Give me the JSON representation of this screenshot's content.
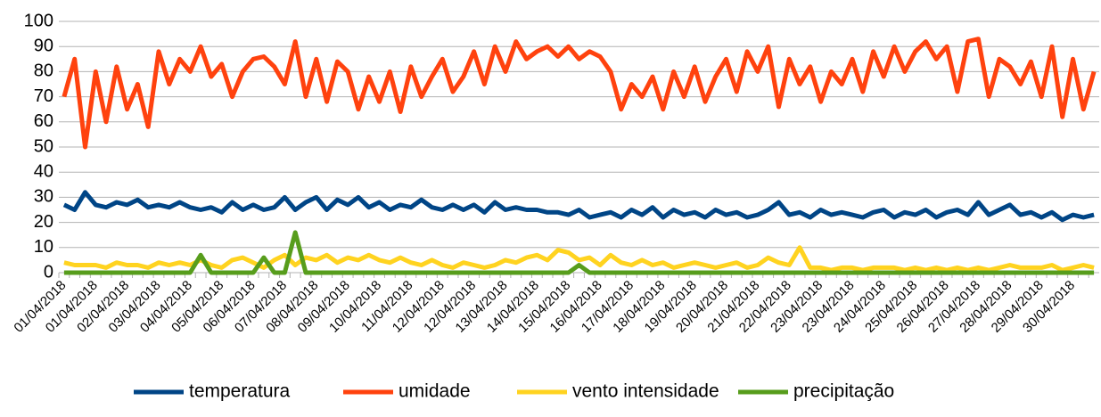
{
  "chart_data": {
    "type": "line",
    "categories": [
      "01/04/2018",
      null,
      null,
      "01/04/2018",
      null,
      null,
      "02/04/2018",
      null,
      null,
      "03/04/2018",
      null,
      null,
      "04/04/2018",
      null,
      null,
      "05/04/2018",
      null,
      null,
      "06/04/2018",
      null,
      null,
      "07/04/2018",
      null,
      null,
      "08/04/2018",
      null,
      null,
      "09/04/2018",
      null,
      null,
      "10/04/2018",
      null,
      null,
      "11/04/2018",
      null,
      null,
      "12/04/2018",
      null,
      null,
      "12/04/2018",
      null,
      null,
      "13/04/2018",
      null,
      null,
      "14/04/2018",
      null,
      null,
      "15/04/2018",
      null,
      null,
      "16/04/2018",
      null,
      null,
      "17/04/2018",
      null,
      null,
      "18/04/2018",
      null,
      null,
      "19/04/2018",
      null,
      null,
      "20/04/2018",
      null,
      null,
      "21/04/2018",
      null,
      null,
      "22/04/2018",
      null,
      null,
      "23/04/2018",
      null,
      null,
      "23/04/2018",
      null,
      null,
      "24/04/2018",
      null,
      null,
      "25/04/2018",
      null,
      null,
      "26/04/2018",
      null,
      null,
      "27/04/2018",
      null,
      null,
      "28/04/2018",
      null,
      null,
      "29/04/2018",
      null,
      null,
      "30/04/2018",
      null,
      null
    ],
    "series": [
      {
        "name": "temperatura",
        "color": "#004586",
        "values": [
          27,
          25,
          32,
          27,
          26,
          28,
          27,
          29,
          26,
          27,
          26,
          28,
          26,
          25,
          26,
          24,
          28,
          25,
          27,
          25,
          26,
          30,
          25,
          28,
          30,
          25,
          29,
          27,
          30,
          26,
          28,
          25,
          27,
          26,
          29,
          26,
          25,
          27,
          25,
          27,
          24,
          28,
          25,
          26,
          25,
          25,
          24,
          24,
          23,
          25,
          22,
          23,
          24,
          22,
          25,
          23,
          26,
          22,
          25,
          23,
          24,
          22,
          25,
          23,
          24,
          22,
          23,
          25,
          28,
          23,
          24,
          22,
          25,
          23,
          24,
          23,
          22,
          24,
          25,
          22,
          24,
          23,
          25,
          22,
          24,
          25,
          23,
          28,
          23,
          25,
          27,
          23,
          24,
          22,
          24,
          21,
          23,
          22,
          23
        ]
      },
      {
        "name": "umidade",
        "color": "#ff420e",
        "values": [
          70,
          85,
          50,
          80,
          60,
          82,
          65,
          75,
          58,
          88,
          75,
          85,
          80,
          90,
          78,
          83,
          70,
          80,
          85,
          86,
          82,
          75,
          92,
          70,
          85,
          68,
          84,
          80,
          65,
          78,
          68,
          80,
          64,
          82,
          70,
          78,
          85,
          72,
          78,
          88,
          75,
          90,
          80,
          92,
          85,
          88,
          90,
          86,
          90,
          85,
          88,
          86,
          80,
          65,
          75,
          70,
          78,
          65,
          80,
          70,
          82,
          68,
          78,
          85,
          72,
          88,
          80,
          90,
          66,
          85,
          75,
          82,
          68,
          80,
          75,
          85,
          72,
          88,
          78,
          90,
          80,
          88,
          92,
          85,
          90,
          72,
          92,
          93,
          70,
          85,
          82,
          75,
          84,
          70,
          90,
          62,
          85,
          65,
          80
        ]
      },
      {
        "name": "vento intensidade",
        "color": "#ffd320",
        "values": [
          4,
          3,
          3,
          3,
          2,
          4,
          3,
          3,
          2,
          4,
          3,
          4,
          3,
          5,
          3,
          2,
          5,
          6,
          4,
          2,
          5,
          7,
          3,
          6,
          5,
          7,
          4,
          6,
          5,
          7,
          5,
          4,
          6,
          4,
          3,
          5,
          3,
          2,
          4,
          3,
          2,
          3,
          5,
          4,
          6,
          7,
          5,
          9,
          8,
          5,
          6,
          3,
          7,
          4,
          3,
          5,
          3,
          4,
          2,
          3,
          4,
          3,
          2,
          3,
          4,
          2,
          3,
          6,
          4,
          3,
          10,
          2,
          2,
          1,
          2,
          2,
          1,
          2,
          2,
          2,
          1,
          2,
          1,
          2,
          1,
          2,
          1,
          2,
          1,
          2,
          3,
          2,
          2,
          2,
          3,
          1,
          2,
          3,
          2
        ]
      },
      {
        "name": "precipitação",
        "color": "#579d1c",
        "values": [
          0,
          0,
          0,
          0,
          0,
          0,
          0,
          0,
          0,
          0,
          0,
          0,
          0,
          7,
          0,
          0,
          0,
          0,
          0,
          6,
          0,
          0,
          16,
          0,
          0,
          0,
          0,
          0,
          0,
          0,
          0,
          0,
          0,
          0,
          0,
          0,
          0,
          0,
          0,
          0,
          0,
          0,
          0,
          0,
          0,
          0,
          0,
          0,
          0,
          3,
          0,
          0,
          0,
          0,
          0,
          0,
          0,
          0,
          0,
          0,
          0,
          0,
          0,
          0,
          0,
          0,
          0,
          0,
          0,
          0,
          0,
          0,
          0,
          0,
          0,
          0,
          0,
          0,
          0,
          0,
          0,
          0,
          0,
          0,
          0,
          0,
          0,
          0,
          0,
          0,
          0,
          0,
          0,
          0,
          0,
          0,
          0,
          0,
          0
        ]
      }
    ],
    "ylim": [
      0,
      100
    ],
    "yticks": [
      0,
      10,
      20,
      30,
      40,
      50,
      60,
      70,
      80,
      90,
      100
    ],
    "grid": true,
    "legend": "bottom"
  }
}
